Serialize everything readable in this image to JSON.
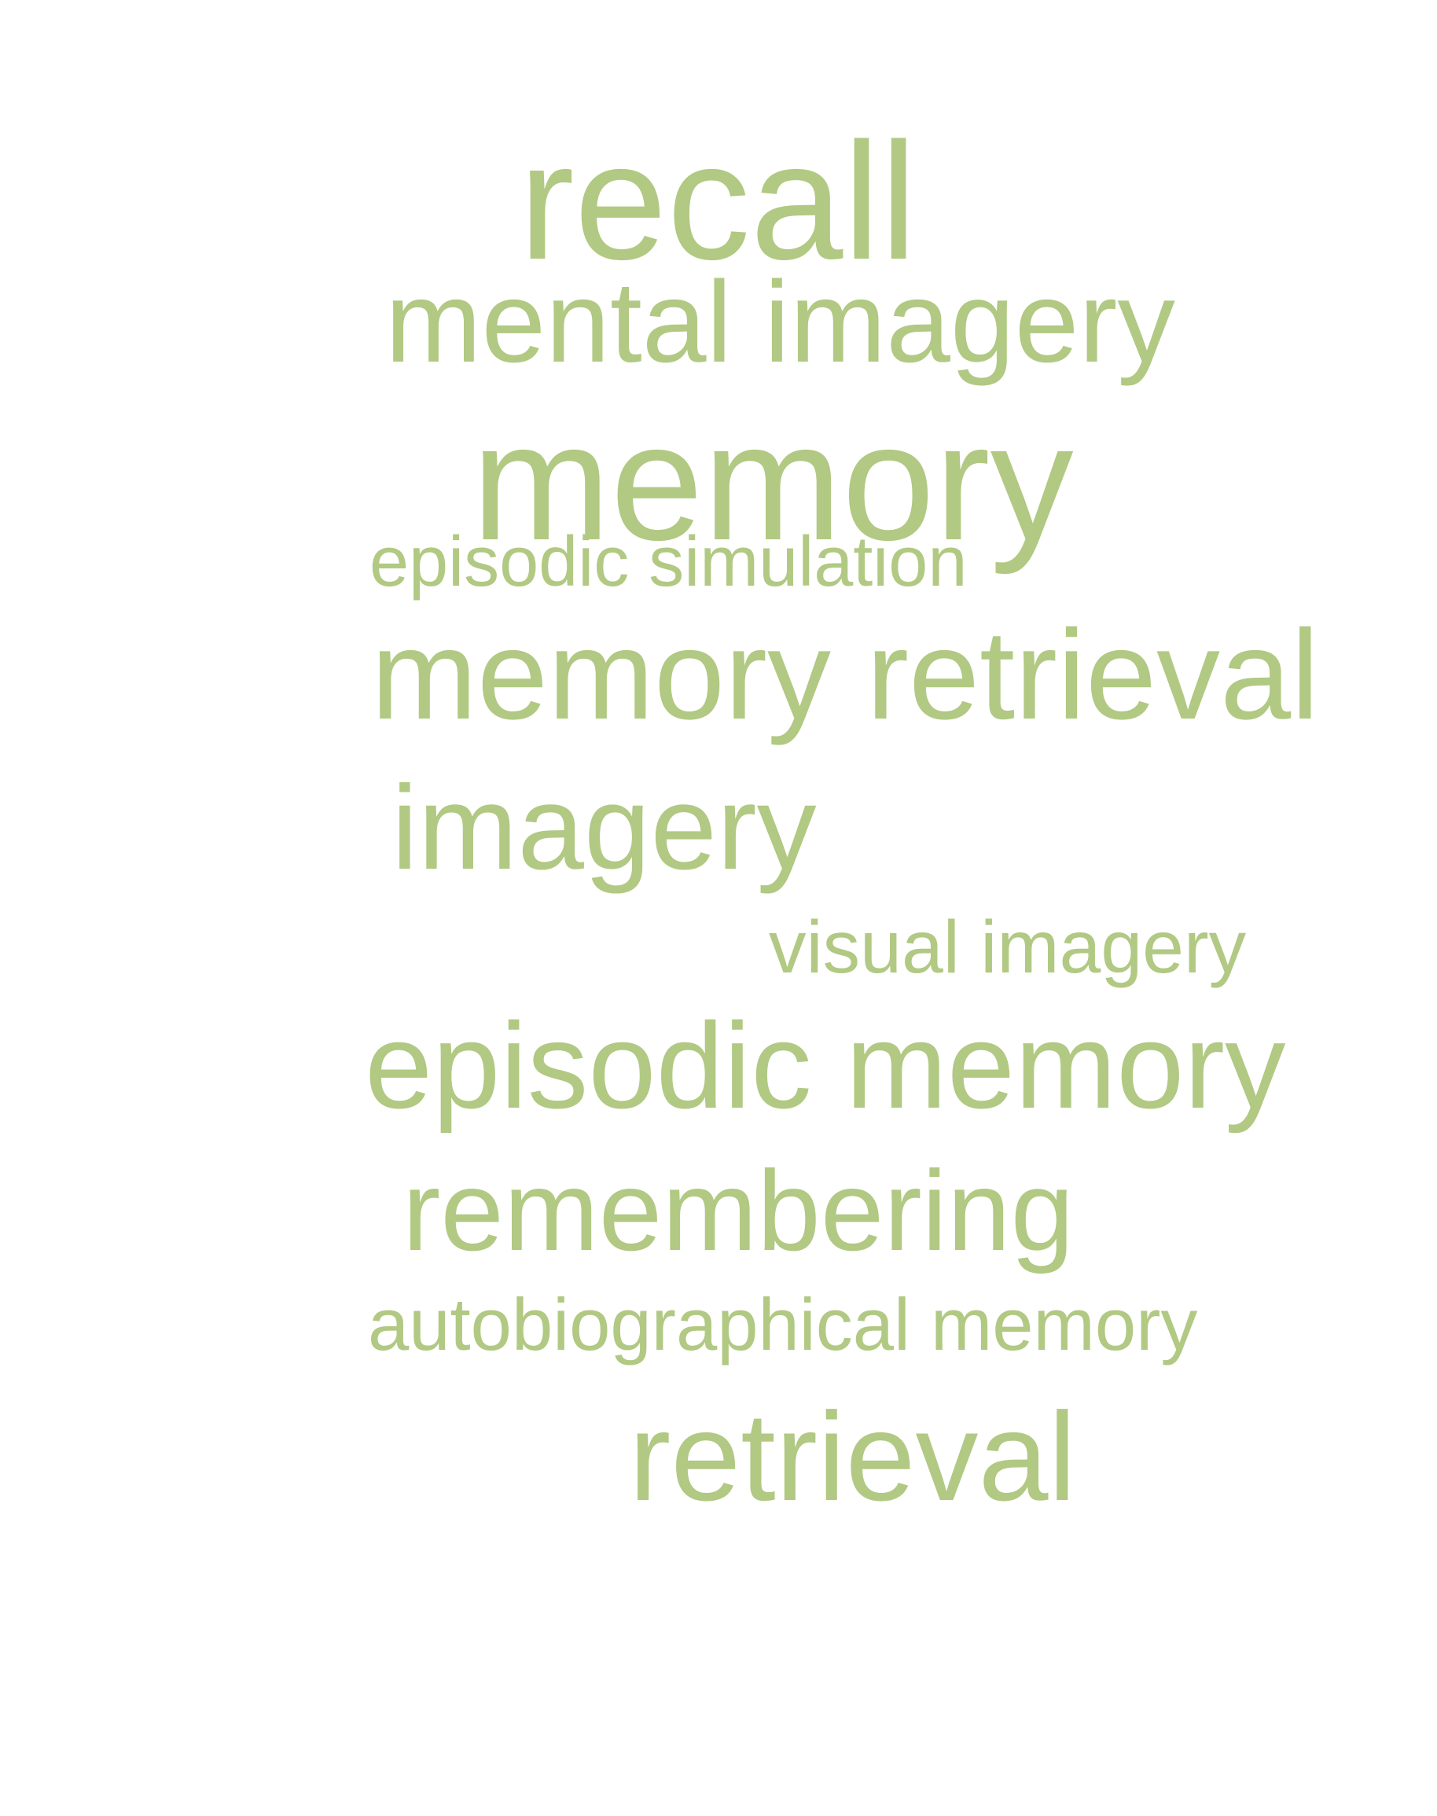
{
  "word_cloud": {
    "color": "#b1c983",
    "words": [
      {
        "text": "recall"
      },
      {
        "text": "mental imagery"
      },
      {
        "text": "memory"
      },
      {
        "text": "episodic simulation"
      },
      {
        "text": "memory retrieval"
      },
      {
        "text": "imagery"
      },
      {
        "text": "visual imagery"
      },
      {
        "text": "episodic memory"
      },
      {
        "text": "remembering"
      },
      {
        "text": "autobiographical memory"
      },
      {
        "text": "retrieval"
      }
    ]
  }
}
